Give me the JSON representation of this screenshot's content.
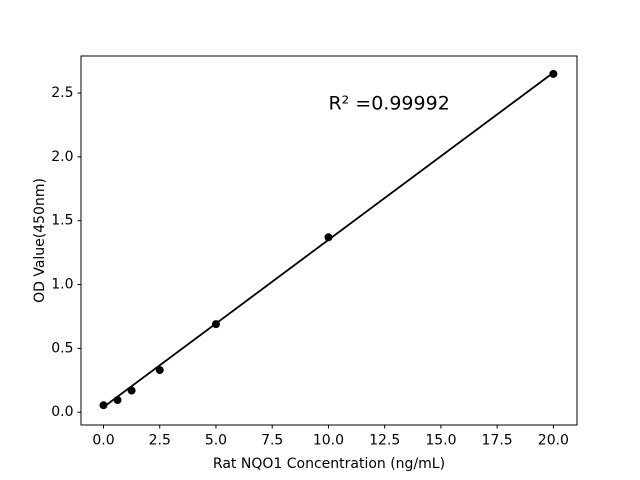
{
  "figure": {
    "background": "#ffffff"
  },
  "chart_data": {
    "type": "scatter",
    "title": "",
    "xlabel": "Rat NQO1 Concentration (ng/mL)",
    "ylabel": "OD Value(450nm)",
    "x": [
      0,
      0.625,
      1.25,
      2.5,
      5,
      10,
      20
    ],
    "y": [
      0.055,
      0.095,
      0.17,
      0.33,
      0.69,
      1.37,
      2.65
    ],
    "trendline": {
      "x": [
        0,
        20
      ],
      "y": [
        0.04,
        2.66
      ]
    },
    "annotation": {
      "text": "R² =0.99992",
      "x": 10,
      "y": 2.37
    },
    "r_squared": "0.99992",
    "xticks": [
      0.0,
      2.5,
      5.0,
      7.5,
      10.0,
      12.5,
      15.0,
      17.5,
      20.0
    ],
    "xtick_labels": [
      "0.0",
      "2.5",
      "5.0",
      "7.5",
      "10.0",
      "12.5",
      "15.0",
      "17.5",
      "20.0"
    ],
    "yticks": [
      0.0,
      0.5,
      1.0,
      1.5,
      2.0,
      2.5
    ],
    "ytick_labels": [
      "0.0",
      "0.5",
      "1.0",
      "1.5",
      "2.0",
      "2.5"
    ],
    "xlim": [
      -1.0,
      21.05
    ],
    "ylim": [
      -0.1,
      2.79
    ],
    "grid": false,
    "legend": null,
    "line_color": "#000000",
    "marker_color": "#000000",
    "spine_color": "#000000",
    "text_color": "#000000"
  }
}
